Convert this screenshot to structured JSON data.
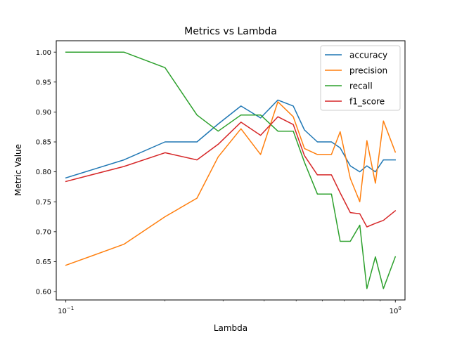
{
  "chart_data": {
    "type": "line",
    "title": "Metrics vs Lambda",
    "xlabel": "Lambda",
    "ylabel": "Metric Value",
    "xscale": "log",
    "xlim": [
      0.0935,
      1.07
    ],
    "ylim": [
      0.586,
      1.019
    ],
    "grid": false,
    "legend_position": "top-right",
    "x_tick_labels": [
      {
        "value": 0.1,
        "base": "10",
        "exp": "−1"
      },
      {
        "value": 1.0,
        "base": "10",
        "exp": "0"
      }
    ],
    "y_ticks": [
      0.6,
      0.65,
      0.7,
      0.75,
      0.8,
      0.85,
      0.9,
      0.95,
      1.0
    ],
    "y_tick_labels": [
      "0.60",
      "0.65",
      "0.70",
      "0.75",
      "0.80",
      "0.85",
      "0.90",
      "0.95",
      "1.00"
    ],
    "x": [
      0.1,
      0.15,
      0.2,
      0.25,
      0.29,
      0.34,
      0.39,
      0.44,
      0.49,
      0.53,
      0.58,
      0.64,
      0.68,
      0.73,
      0.78,
      0.82,
      0.87,
      0.92,
      1.0
    ],
    "series": [
      {
        "name": "accuracy",
        "color": "#1f77b4",
        "values": [
          0.79,
          0.82,
          0.85,
          0.85,
          0.88,
          0.91,
          0.89,
          0.92,
          0.91,
          0.87,
          0.85,
          0.85,
          0.84,
          0.81,
          0.8,
          0.81,
          0.8,
          0.82,
          0.82
        ]
      },
      {
        "name": "precision",
        "color": "#ff7f0e",
        "values": [
          0.644,
          0.679,
          0.725,
          0.756,
          0.825,
          0.872,
          0.829,
          0.917,
          0.892,
          0.839,
          0.829,
          0.829,
          0.867,
          0.789,
          0.75,
          0.852,
          0.781,
          0.885,
          0.833
        ]
      },
      {
        "name": "recall",
        "color": "#2ca02c",
        "values": [
          1.0,
          1.0,
          0.974,
          0.895,
          0.868,
          0.895,
          0.895,
          0.868,
          0.868,
          0.816,
          0.763,
          0.763,
          0.684,
          0.684,
          0.711,
          0.605,
          0.658,
          0.605,
          0.658
        ]
      },
      {
        "name": "f1_score",
        "color": "#d62728",
        "values": [
          0.784,
          0.809,
          0.832,
          0.82,
          0.846,
          0.883,
          0.861,
          0.892,
          0.879,
          0.827,
          0.795,
          0.795,
          0.765,
          0.732,
          0.73,
          0.708,
          0.714,
          0.719,
          0.735
        ]
      }
    ]
  }
}
